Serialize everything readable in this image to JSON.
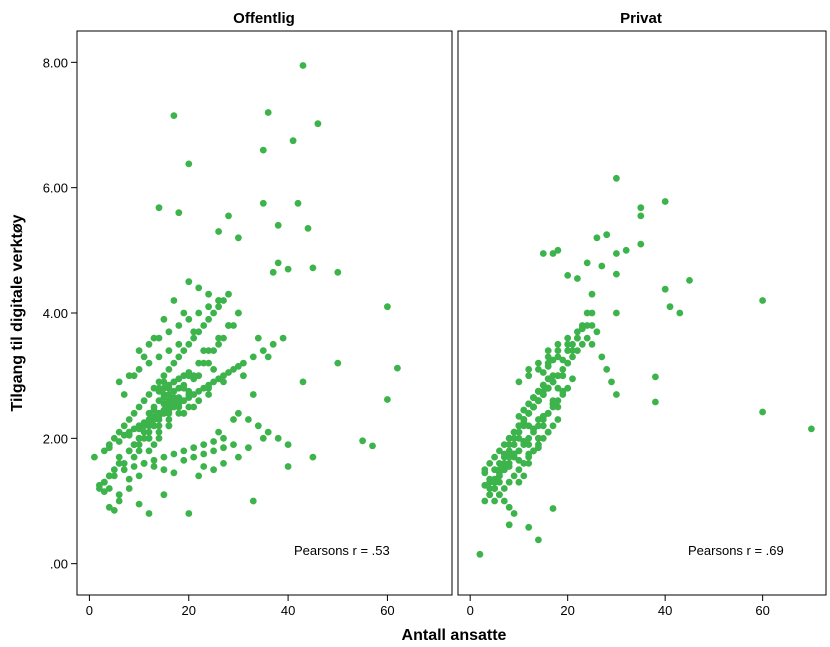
{
  "chart_data": {
    "type": "scatter",
    "xlabel": "Antall ansatte",
    "ylabel": "Tilgang til digitale verktøy",
    "point_color": "#3cb44b",
    "grid": false,
    "legend": "none",
    "panels": [
      {
        "title": "Offentlig",
        "annotation": "Pearsons r = .53",
        "xlim": [
          -2.5,
          73
        ],
        "ylim": [
          -0.5,
          8.5
        ],
        "xticks": [
          0,
          20,
          40,
          60
        ],
        "xtick_labels": [
          "0",
          "20",
          "40",
          "60"
        ],
        "yticks": [
          0,
          2,
          4,
          6,
          8
        ],
        "ytick_labels": [
          ".00",
          "2.00",
          "4.00",
          "6.00",
          "8.00"
        ],
        "x": [
          43,
          17,
          36,
          46,
          41,
          35,
          20,
          14,
          18,
          28,
          26,
          42,
          38,
          30,
          35,
          38,
          44,
          37,
          50,
          60,
          62,
          40,
          45,
          43,
          50,
          55,
          57,
          60,
          45,
          40,
          33,
          1,
          2,
          3,
          4,
          5,
          6,
          8,
          10,
          12,
          15,
          20,
          23,
          27,
          30,
          35,
          32,
          25,
          22,
          26,
          21,
          29,
          24,
          19,
          16,
          13,
          11,
          9,
          7,
          5,
          3,
          4,
          6,
          8,
          10,
          12,
          14,
          16,
          18,
          20,
          22,
          24,
          26,
          28,
          30,
          34,
          36,
          31,
          33,
          27,
          25,
          23,
          21,
          19,
          17,
          15,
          13,
          11,
          9,
          7,
          14,
          15,
          16,
          17,
          18,
          13,
          14,
          15,
          16,
          17,
          12,
          13,
          18,
          19,
          10,
          11,
          12,
          14,
          16,
          20,
          22,
          24,
          8,
          9,
          10,
          6,
          7,
          5,
          4,
          3,
          11,
          13,
          15,
          17,
          19,
          21,
          23,
          25,
          27,
          29,
          9,
          10,
          12,
          14,
          16,
          18,
          6,
          8,
          10,
          12,
          14,
          2,
          4,
          6,
          8,
          10,
          12,
          14,
          16,
          18,
          20,
          22,
          24,
          26,
          28,
          30,
          15,
          16,
          17,
          14,
          13,
          12,
          18,
          19,
          20,
          21,
          22,
          23,
          24,
          25,
          26,
          27,
          28,
          11,
          10,
          9,
          8,
          7,
          6,
          5,
          4,
          3,
          15,
          17,
          19,
          21,
          16,
          18,
          20,
          13,
          15,
          17,
          14,
          16,
          18,
          20,
          22,
          24,
          26,
          28,
          30,
          12,
          10,
          8,
          6,
          4,
          11,
          13,
          15,
          17,
          19,
          21,
          23,
          25,
          27,
          29,
          31,
          33,
          35,
          37,
          39,
          20,
          22,
          24,
          26,
          14,
          16,
          18,
          12,
          10,
          8,
          6,
          30,
          32,
          34,
          36,
          38,
          40,
          9,
          11,
          13,
          15,
          17,
          19,
          21,
          23,
          25,
          27,
          16,
          14,
          12,
          10,
          18,
          20,
          22,
          24,
          26,
          17,
          15,
          13,
          11,
          19,
          21,
          23,
          25,
          27,
          29,
          14,
          15,
          16,
          17,
          18,
          19,
          20,
          16,
          15,
          14,
          13,
          17,
          18,
          12,
          11,
          10,
          9,
          8,
          7
        ],
        "y": [
          7.95,
          7.15,
          7.2,
          7.02,
          6.75,
          6.6,
          6.38,
          5.68,
          5.6,
          5.55,
          5.3,
          5.75,
          5.4,
          5.2,
          5.75,
          4.8,
          5.35,
          4.65,
          4.65,
          4.1,
          3.12,
          4.7,
          4.72,
          2.9,
          3.2,
          1.96,
          1.88,
          2.62,
          1.7,
          1.55,
          1.0,
          1.7,
          1.25,
          1.15,
          0.9,
          0.85,
          1.0,
          1.35,
          0.95,
          0.8,
          1.1,
          0.8,
          1.55,
          1.6,
          1.7,
          2.0,
          1.85,
          1.5,
          1.4,
          2.1,
          2.5,
          2.3,
          2.8,
          2.4,
          2.2,
          1.9,
          1.6,
          1.7,
          1.5,
          1.4,
          1.3,
          1.2,
          1.1,
          1.2,
          1.4,
          1.8,
          2.0,
          2.2,
          2.5,
          2.7,
          3.0,
          3.2,
          3.5,
          3.8,
          4.0,
          3.6,
          3.3,
          3.0,
          2.7,
          2.9,
          3.1,
          3.4,
          3.7,
          4.0,
          4.2,
          3.9,
          3.6,
          3.3,
          3.0,
          2.7,
          2.6,
          2.7,
          2.8,
          2.9,
          2.6,
          2.5,
          2.8,
          2.9,
          2.7,
          2.6,
          2.4,
          2.3,
          2.5,
          2.4,
          2.2,
          2.1,
          2.0,
          2.3,
          2.4,
          2.5,
          2.6,
          2.7,
          2.1,
          1.9,
          1.8,
          1.7,
          1.6,
          1.5,
          1.4,
          1.3,
          2.0,
          2.2,
          2.4,
          2.6,
          2.8,
          3.0,
          3.2,
          3.4,
          3.6,
          3.8,
          1.9,
          2.0,
          2.1,
          2.2,
          2.3,
          2.4,
          1.6,
          1.8,
          1.9,
          2.0,
          2.1,
          1.2,
          1.4,
          1.6,
          1.8,
          2.0,
          2.2,
          2.4,
          2.6,
          2.8,
          3.0,
          3.2,
          3.4,
          3.6,
          3.8,
          4.0,
          3.0,
          3.1,
          3.2,
          2.9,
          2.8,
          2.7,
          3.3,
          3.4,
          3.5,
          3.6,
          3.7,
          3.8,
          3.9,
          4.0,
          4.1,
          4.2,
          4.3,
          2.6,
          2.5,
          2.4,
          2.3,
          2.2,
          2.1,
          2.0,
          1.9,
          1.8,
          2.65,
          2.75,
          2.85,
          2.95,
          2.55,
          2.65,
          2.75,
          2.45,
          2.55,
          2.65,
          2.35,
          2.45,
          2.55,
          2.65,
          2.75,
          2.85,
          2.95,
          3.05,
          3.15,
          2.25,
          2.15,
          2.05,
          1.95,
          1.85,
          2.2,
          2.3,
          2.4,
          2.5,
          2.6,
          2.7,
          2.8,
          2.9,
          3.0,
          3.1,
          3.2,
          3.3,
          3.4,
          3.5,
          3.6,
          4.5,
          4.4,
          4.3,
          4.2,
          3.3,
          3.4,
          3.5,
          3.2,
          3.1,
          3.0,
          2.9,
          2.4,
          2.3,
          2.2,
          2.1,
          2.0,
          1.9,
          1.55,
          1.6,
          1.65,
          1.7,
          1.75,
          1.8,
          1.85,
          1.9,
          1.95,
          2.0,
          3.7,
          3.6,
          3.5,
          3.4,
          3.8,
          3.9,
          4.0,
          4.1,
          4.2,
          1.45,
          1.5,
          1.55,
          1.6,
          1.65,
          1.7,
          1.75,
          1.8,
          1.85,
          1.9,
          2.75,
          2.8,
          2.85,
          2.9,
          2.95,
          3.0,
          3.05,
          2.5,
          2.45,
          2.4,
          2.35,
          2.6,
          2.65,
          2.3,
          2.25,
          2.2,
          2.15,
          2.1,
          2.05
        ]
      },
      {
        "title": "Privat",
        "annotation": "Pearsons r = .69",
        "xlim": [
          -2.5,
          73
        ],
        "ylim": [
          -0.5,
          8.5
        ],
        "xticks": [
          0,
          20,
          40,
          60
        ],
        "xtick_labels": [
          "0",
          "20",
          "40",
          "60"
        ],
        "yticks": [
          0,
          2,
          4,
          6,
          8
        ],
        "ytick_labels": [
          ".00",
          "2.00",
          "4.00",
          "6.00",
          "8.00"
        ],
        "x": [
          30,
          40,
          35,
          35,
          28,
          30,
          32,
          26,
          30,
          35,
          22,
          24,
          27,
          40,
          41,
          43,
          45,
          60,
          70,
          60,
          38,
          38,
          17,
          18,
          15,
          20,
          25,
          30,
          25,
          8,
          14,
          12,
          17,
          2,
          3,
          4,
          5,
          6,
          7,
          8,
          9,
          10,
          11,
          12,
          13,
          14,
          15,
          16,
          17,
          18,
          19,
          20,
          21,
          22,
          23,
          24,
          25,
          26,
          27,
          28,
          29,
          30,
          3,
          4,
          5,
          6,
          7,
          8,
          9,
          10,
          11,
          12,
          13,
          14,
          15,
          16,
          17,
          18,
          19,
          20,
          21,
          22,
          23,
          24,
          4,
          5,
          6,
          7,
          8,
          9,
          10,
          11,
          12,
          13,
          14,
          15,
          16,
          17,
          18,
          19,
          20,
          5,
          6,
          7,
          8,
          9,
          10,
          11,
          12,
          13,
          14,
          15,
          16,
          17,
          18,
          14,
          15,
          16,
          17,
          13,
          14,
          15,
          16,
          17,
          12,
          13,
          14,
          15,
          16,
          17,
          18,
          11,
          12,
          13,
          14,
          15,
          16,
          10,
          11,
          12,
          13,
          14,
          9,
          10,
          11,
          12,
          13,
          8,
          9,
          10,
          11,
          7,
          8,
          9,
          10,
          6,
          7,
          8,
          5,
          6,
          7,
          4,
          5,
          6,
          3,
          4,
          5,
          14,
          15,
          16,
          15,
          16,
          17,
          13,
          14,
          15,
          16,
          12,
          13,
          14,
          15,
          11,
          12,
          13,
          14,
          10,
          11,
          12,
          13,
          16,
          18,
          20,
          22,
          24,
          12,
          14,
          16,
          18,
          20,
          22,
          10,
          12,
          14,
          16,
          18,
          20,
          8,
          10,
          12,
          14,
          16,
          18,
          6,
          8,
          10,
          12,
          14,
          16,
          4,
          6,
          8,
          10,
          12,
          14,
          3,
          5,
          7,
          9,
          11,
          13,
          15,
          17,
          19,
          21,
          23,
          25,
          13,
          15,
          17,
          19,
          21,
          11,
          13,
          15,
          17,
          19,
          9,
          11,
          13,
          15,
          17,
          7,
          9,
          11,
          13,
          15,
          5,
          7,
          9,
          11,
          13
        ],
        "y": [
          6.15,
          5.78,
          5.68,
          5.55,
          5.25,
          4.95,
          5.0,
          5.2,
          4.62,
          5.1,
          4.55,
          4.8,
          4.75,
          4.38,
          4.1,
          4.0,
          4.52,
          4.2,
          2.15,
          2.42,
          2.98,
          2.58,
          4.95,
          5.0,
          4.95,
          4.6,
          4.3,
          4.0,
          3.8,
          0.62,
          0.38,
          0.58,
          0.88,
          0.15,
          1.45,
          1.3,
          1.2,
          1.1,
          1.0,
          0.9,
          0.8,
          1.3,
          1.4,
          1.6,
          1.8,
          2.0,
          2.2,
          2.4,
          2.6,
          2.8,
          3.0,
          3.2,
          3.4,
          3.6,
          3.8,
          4.0,
          3.5,
          3.7,
          3.3,
          3.1,
          2.9,
          2.7,
          1.5,
          1.6,
          1.7,
          1.8,
          1.9,
          2.0,
          2.1,
          2.2,
          2.3,
          2.4,
          2.5,
          2.6,
          2.7,
          2.8,
          2.9,
          3.0,
          3.1,
          3.2,
          3.3,
          3.4,
          3.5,
          3.6,
          1.2,
          1.3,
          1.4,
          1.5,
          1.6,
          1.7,
          1.8,
          1.9,
          2.0,
          2.1,
          2.2,
          2.3,
          2.4,
          2.5,
          2.6,
          2.7,
          2.8,
          1.0,
          1.1,
          1.2,
          1.3,
          1.4,
          1.5,
          1.6,
          1.7,
          1.8,
          1.9,
          2.0,
          2.1,
          2.2,
          2.3,
          2.6,
          2.7,
          2.8,
          2.9,
          2.5,
          2.6,
          2.7,
          2.8,
          2.9,
          2.4,
          2.5,
          2.6,
          2.7,
          2.8,
          2.9,
          3.0,
          2.3,
          2.4,
          2.5,
          2.6,
          2.7,
          2.8,
          2.2,
          2.3,
          2.4,
          2.5,
          2.6,
          2.1,
          2.2,
          2.3,
          2.4,
          2.5,
          1.9,
          2.0,
          2.1,
          2.2,
          1.7,
          1.8,
          1.9,
          2.0,
          1.5,
          1.6,
          1.7,
          1.3,
          1.4,
          1.5,
          1.1,
          1.2,
          1.3,
          1.0,
          1.1,
          1.2,
          2.75,
          2.85,
          2.95,
          3.05,
          3.15,
          3.25,
          2.65,
          2.75,
          2.85,
          2.95,
          2.55,
          2.65,
          2.75,
          2.85,
          2.45,
          2.55,
          2.65,
          2.75,
          2.35,
          2.45,
          2.55,
          2.65,
          3.4,
          3.5,
          3.6,
          3.7,
          3.8,
          3.1,
          3.2,
          3.3,
          3.4,
          3.5,
          3.6,
          2.9,
          3.0,
          3.1,
          3.2,
          3.3,
          3.4,
          2.0,
          2.1,
          2.2,
          2.3,
          2.4,
          2.5,
          1.6,
          1.7,
          1.8,
          1.9,
          2.0,
          2.1,
          1.35,
          1.45,
          1.55,
          1.65,
          1.75,
          1.85,
          1.25,
          1.5,
          1.75,
          2.0,
          2.25,
          2.5,
          2.75,
          3.0,
          3.25,
          3.5,
          3.75,
          4.0,
          2.15,
          2.35,
          2.55,
          2.75,
          2.95,
          1.95,
          2.15,
          2.35,
          2.55,
          2.75,
          1.75,
          1.95,
          2.15,
          2.35,
          2.55,
          1.55,
          1.75,
          1.95,
          2.15,
          2.35,
          1.35,
          1.55,
          1.75,
          1.95,
          2.15
        ]
      }
    ]
  }
}
